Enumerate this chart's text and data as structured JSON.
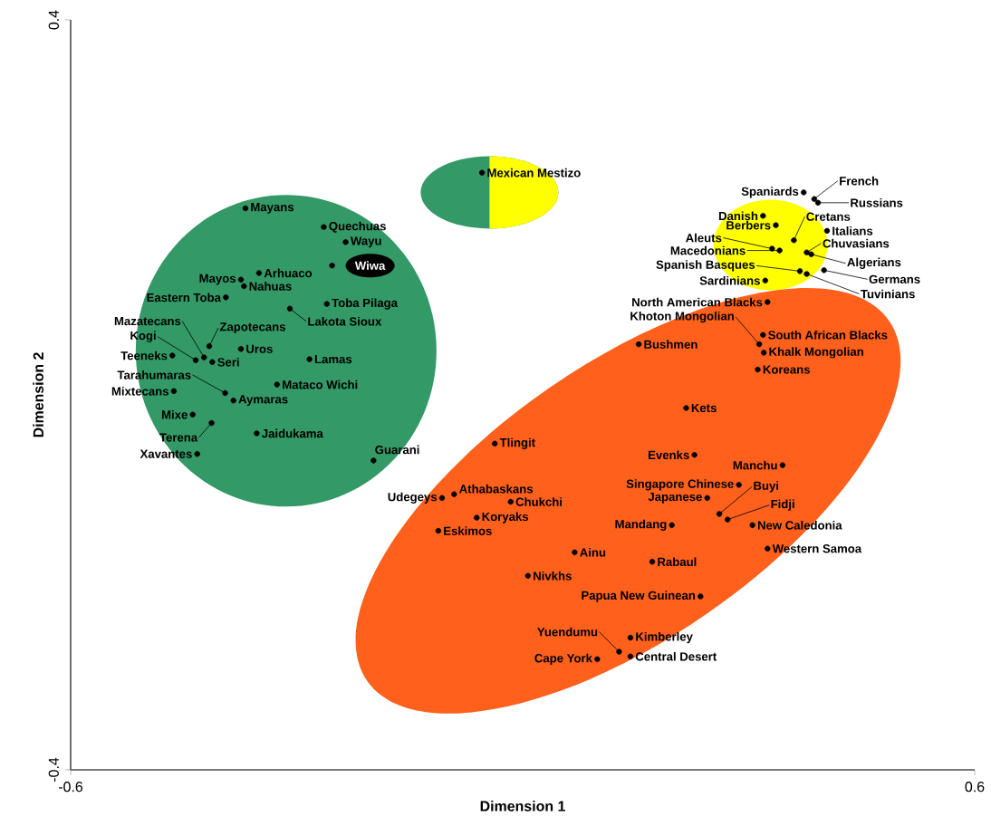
{
  "chart_data": {
    "type": "scatter",
    "xlabel": "Dimension 1",
    "ylabel": "Dimension 2",
    "xlim": [
      -0.6,
      0.6
    ],
    "ylim": [
      -0.4,
      0.4
    ],
    "xticks": [
      -0.6,
      0.6
    ],
    "yticks": [
      -0.4,
      0.4
    ],
    "marker": "circle",
    "series": [
      {
        "color": "#000000",
        "x": [
          -0.054,
          -0.368,
          -0.264,
          -0.235,
          -0.253,
          -0.35,
          -0.374,
          -0.37,
          -0.394,
          -0.26,
          -0.309,
          -0.416,
          -0.374,
          -0.465,
          -0.423,
          -0.434,
          -0.412,
          -0.283,
          -0.326,
          -0.463,
          -0.395,
          -0.384,
          -0.438,
          -0.413,
          -0.353,
          -0.432,
          -0.198,
          0.373,
          0.387,
          0.392,
          0.319,
          0.336,
          0.36,
          0.404,
          0.331,
          0.341,
          0.377,
          0.383,
          0.368,
          0.377,
          0.4,
          0.322,
          0.325,
          0.314,
          0.319,
          0.32,
          0.312,
          0.154,
          0.217,
          -0.037,
          0.228,
          0.345,
          0.287,
          0.261,
          0.245,
          0.272,
          0.305,
          0.198,
          0.325,
          -0.107,
          -0.091,
          -0.016,
          -0.061,
          -0.112,
          0.069,
          0.172,
          0.007,
          0.236,
          0.143,
          0.128,
          0.143,
          0.099
        ],
        "values": [
          0.237,
          0.199,
          0.179,
          0.163,
          0.138,
          0.13,
          0.123,
          0.116,
          0.104,
          0.097,
          0.092,
          0.052,
          0.049,
          0.042,
          0.04,
          0.037,
          0.035,
          0.038,
          0.011,
          0.004,
          0.002,
          -0.006,
          -0.021,
          -0.03,
          -0.041,
          -0.063,
          -0.07,
          0.216,
          0.209,
          0.205,
          0.191,
          0.181,
          0.165,
          0.175,
          0.156,
          0.154,
          0.152,
          0.15,
          0.132,
          0.129,
          0.133,
          0.122,
          0.099,
          0.054,
          0.064,
          0.045,
          0.027,
          0.054,
          -0.014,
          -0.052,
          -0.064,
          -0.075,
          -0.096,
          -0.127,
          -0.11,
          -0.133,
          -0.139,
          -0.139,
          -0.164,
          -0.11,
          -0.106,
          -0.114,
          -0.131,
          -0.145,
          -0.168,
          -0.178,
          -0.193,
          -0.215,
          -0.259,
          -0.274,
          -0.279,
          -0.282
        ]
      }
    ],
    "annotations": [
      {
        "text": "Mexican Mestizo",
        "x": -0.054,
        "y": 0.237
      },
      {
        "text": "Mayans",
        "x": -0.368,
        "y": 0.199
      },
      {
        "text": "Quechuas",
        "x": -0.264,
        "y": 0.179
      },
      {
        "text": "Wayu",
        "x": -0.235,
        "y": 0.163
      },
      {
        "text": "Wiwa",
        "x": -0.253,
        "y": 0.138
      },
      {
        "text": "Arhuaco",
        "x": -0.35,
        "y": 0.13
      },
      {
        "text": "Mayos",
        "x": -0.374,
        "y": 0.123
      },
      {
        "text": "Nahuas",
        "x": -0.37,
        "y": 0.116
      },
      {
        "text": "Eastern Toba",
        "x": -0.394,
        "y": 0.104
      },
      {
        "text": "Toba Pilaga",
        "x": -0.26,
        "y": 0.097
      },
      {
        "text": "Lakota Sioux",
        "x": -0.309,
        "y": 0.092
      },
      {
        "text": "Zapotecans",
        "x": -0.416,
        "y": 0.052
      },
      {
        "text": "Uros",
        "x": -0.374,
        "y": 0.049
      },
      {
        "text": "Teeneks",
        "x": -0.465,
        "y": 0.042
      },
      {
        "text": "Mazatecans",
        "x": -0.423,
        "y": 0.04
      },
      {
        "text": "Kogi",
        "x": -0.434,
        "y": 0.037
      },
      {
        "text": "Seri",
        "x": -0.412,
        "y": 0.035
      },
      {
        "text": "Lamas",
        "x": -0.283,
        "y": 0.038
      },
      {
        "text": "Mataco Wichi",
        "x": -0.326,
        "y": 0.011
      },
      {
        "text": "Mixtecans",
        "x": -0.463,
        "y": 0.004
      },
      {
        "text": "Tarahumaras",
        "x": -0.395,
        "y": 0.002
      },
      {
        "text": "Aymaras",
        "x": -0.384,
        "y": -0.006
      },
      {
        "text": "Mixe",
        "x": -0.438,
        "y": -0.021
      },
      {
        "text": "Terena",
        "x": -0.413,
        "y": -0.03
      },
      {
        "text": "Jaidukama",
        "x": -0.353,
        "y": -0.041
      },
      {
        "text": "Xavantes",
        "x": -0.432,
        "y": -0.063
      },
      {
        "text": "Guarani",
        "x": -0.198,
        "y": -0.07
      },
      {
        "text": "Spaniards",
        "x": 0.373,
        "y": 0.216
      },
      {
        "text": "French",
        "x": 0.387,
        "y": 0.209
      },
      {
        "text": "Russians",
        "x": 0.392,
        "y": 0.205
      },
      {
        "text": "Danish",
        "x": 0.319,
        "y": 0.191
      },
      {
        "text": "Berbers",
        "x": 0.336,
        "y": 0.181
      },
      {
        "text": "Cretans",
        "x": 0.36,
        "y": 0.165
      },
      {
        "text": "Italians",
        "x": 0.404,
        "y": 0.175
      },
      {
        "text": "Aleuts",
        "x": 0.331,
        "y": 0.156
      },
      {
        "text": "Macedonians",
        "x": 0.341,
        "y": 0.154
      },
      {
        "text": "Chuvasians",
        "x": 0.377,
        "y": 0.152
      },
      {
        "text": "Algerians",
        "x": 0.383,
        "y": 0.15
      },
      {
        "text": "Spanish Basques",
        "x": 0.368,
        "y": 0.132
      },
      {
        "text": "Tuvinians",
        "x": 0.377,
        "y": 0.129
      },
      {
        "text": "Germans",
        "x": 0.4,
        "y": 0.133
      },
      {
        "text": "Sardinians",
        "x": 0.322,
        "y": 0.122
      },
      {
        "text": "North American Blacks",
        "x": 0.325,
        "y": 0.099
      },
      {
        "text": "Khoton Mongolian",
        "x": 0.314,
        "y": 0.054
      },
      {
        "text": "South African Blacks",
        "x": 0.319,
        "y": 0.064
      },
      {
        "text": "Khalk Mongolian",
        "x": 0.32,
        "y": 0.045
      },
      {
        "text": "Koreans",
        "x": 0.312,
        "y": 0.027
      },
      {
        "text": "Bushmen",
        "x": 0.154,
        "y": 0.054
      },
      {
        "text": "Kets",
        "x": 0.217,
        "y": -0.014
      },
      {
        "text": "Tlingit",
        "x": -0.037,
        "y": -0.052
      },
      {
        "text": "Evenks",
        "x": 0.228,
        "y": -0.064
      },
      {
        "text": "Manchu",
        "x": 0.345,
        "y": -0.075
      },
      {
        "text": "Singapore Chinese",
        "x": 0.287,
        "y": -0.096
      },
      {
        "text": "Buyi",
        "x": 0.261,
        "y": -0.127
      },
      {
        "text": "Japanese",
        "x": 0.245,
        "y": -0.11
      },
      {
        "text": "Fidji",
        "x": 0.272,
        "y": -0.133
      },
      {
        "text": "New Caledonia",
        "x": 0.305,
        "y": -0.139
      },
      {
        "text": "Mandang",
        "x": 0.198,
        "y": -0.139
      },
      {
        "text": "Western Samoa",
        "x": 0.325,
        "y": -0.164
      },
      {
        "text": "Udegeys",
        "x": -0.107,
        "y": -0.11
      },
      {
        "text": "Athabaskans",
        "x": -0.091,
        "y": -0.106
      },
      {
        "text": "Chukchi",
        "x": -0.016,
        "y": -0.114
      },
      {
        "text": "Koryaks",
        "x": -0.061,
        "y": -0.131
      },
      {
        "text": "Eskimos",
        "x": -0.112,
        "y": -0.145
      },
      {
        "text": "Ainu",
        "x": 0.069,
        "y": -0.168
      },
      {
        "text": "Rabaul",
        "x": 0.172,
        "y": -0.178
      },
      {
        "text": "Nivkhs",
        "x": 0.007,
        "y": -0.193
      },
      {
        "text": "Papua New Guinean",
        "x": 0.236,
        "y": -0.215
      },
      {
        "text": "Kimberley",
        "x": 0.143,
        "y": -0.259
      },
      {
        "text": "Yuendumu",
        "x": 0.128,
        "y": -0.274
      },
      {
        "text": "Central Desert",
        "x": 0.143,
        "y": -0.279
      },
      {
        "text": "Cape York",
        "x": 0.099,
        "y": -0.282
      }
    ]
  }
}
